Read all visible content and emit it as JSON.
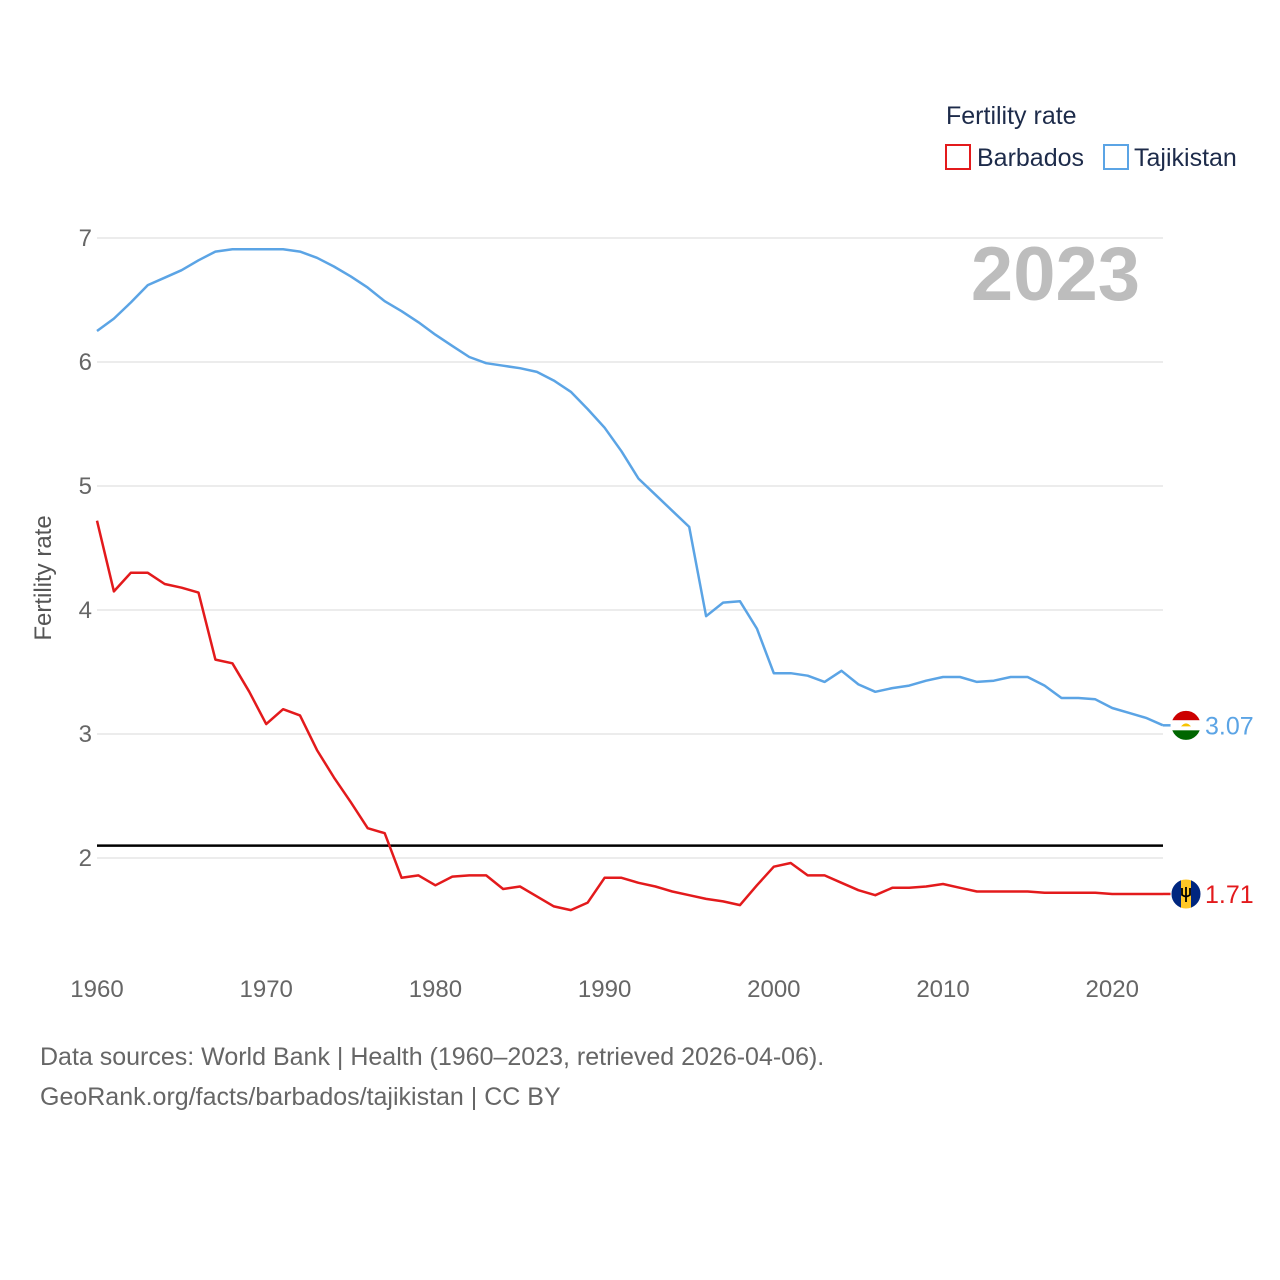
{
  "chart_data": {
    "type": "line",
    "title": "Fertility rate",
    "ylabel": "Fertility rate",
    "xlabel": "",
    "year_label": "2023",
    "xlim": [
      1960,
      2023
    ],
    "ylim": [
      1.2,
      7.3
    ],
    "x_ticks": [
      1960,
      1970,
      1980,
      1990,
      2000,
      2010,
      2020
    ],
    "y_ticks": [
      2,
      3,
      4,
      5,
      6,
      7
    ],
    "grid": true,
    "reference_line": 2.1,
    "legend": {
      "title": "Fertility rate",
      "position": "top-right"
    },
    "x": [
      1960,
      1961,
      1962,
      1963,
      1964,
      1965,
      1966,
      1967,
      1968,
      1969,
      1970,
      1971,
      1972,
      1973,
      1974,
      1975,
      1976,
      1977,
      1978,
      1979,
      1980,
      1981,
      1982,
      1983,
      1984,
      1985,
      1986,
      1987,
      1988,
      1989,
      1990,
      1991,
      1992,
      1993,
      1994,
      1995,
      1996,
      1997,
      1998,
      1999,
      2000,
      2001,
      2002,
      2003,
      2004,
      2005,
      2006,
      2007,
      2008,
      2009,
      2010,
      2011,
      2012,
      2013,
      2014,
      2015,
      2016,
      2017,
      2018,
      2019,
      2020,
      2021,
      2022,
      2023
    ],
    "series": [
      {
        "name": "Barbados",
        "color": "#e31a1c",
        "flag": "barbados-flag",
        "end_label": "1.71",
        "values": [
          4.72,
          4.15,
          4.3,
          4.3,
          4.21,
          4.18,
          4.14,
          3.6,
          3.57,
          3.34,
          3.08,
          3.2,
          3.15,
          2.87,
          2.65,
          2.45,
          2.24,
          2.2,
          1.84,
          1.86,
          1.78,
          1.85,
          1.86,
          1.86,
          1.75,
          1.77,
          1.69,
          1.61,
          1.58,
          1.64,
          1.84,
          1.84,
          1.8,
          1.77,
          1.73,
          1.7,
          1.67,
          1.65,
          1.62,
          1.78,
          1.93,
          1.96,
          1.86,
          1.86,
          1.8,
          1.74,
          1.7,
          1.76,
          1.76,
          1.77,
          1.79,
          1.76,
          1.73,
          1.73,
          1.73,
          1.73,
          1.72,
          1.72,
          1.72,
          1.72,
          1.71,
          1.71,
          1.71,
          1.71
        ]
      },
      {
        "name": "Tajikistan",
        "color": "#5ba4e5",
        "flag": "tajikistan-flag",
        "end_label": "3.07",
        "values": [
          6.25,
          6.35,
          6.48,
          6.62,
          6.68,
          6.74,
          6.82,
          6.89,
          6.91,
          6.91,
          6.91,
          6.91,
          6.89,
          6.84,
          6.77,
          6.69,
          6.6,
          6.49,
          6.41,
          6.32,
          6.22,
          6.13,
          6.04,
          5.99,
          5.97,
          5.95,
          5.92,
          5.85,
          5.76,
          5.62,
          5.47,
          5.28,
          5.06,
          4.93,
          4.8,
          4.67,
          3.95,
          4.06,
          4.07,
          3.85,
          3.49,
          3.49,
          3.47,
          3.42,
          3.51,
          3.4,
          3.34,
          3.37,
          3.39,
          3.43,
          3.46,
          3.46,
          3.42,
          3.43,
          3.46,
          3.46,
          3.39,
          3.29,
          3.29,
          3.28,
          3.21,
          3.17,
          3.13,
          3.07
        ]
      }
    ]
  },
  "footer": {
    "line1": "Data sources: World Bank | Health (1960–2023, retrieved 2026-04-06).",
    "line2": "GeoRank.org/facts/barbados/tajikistan | CC BY"
  }
}
